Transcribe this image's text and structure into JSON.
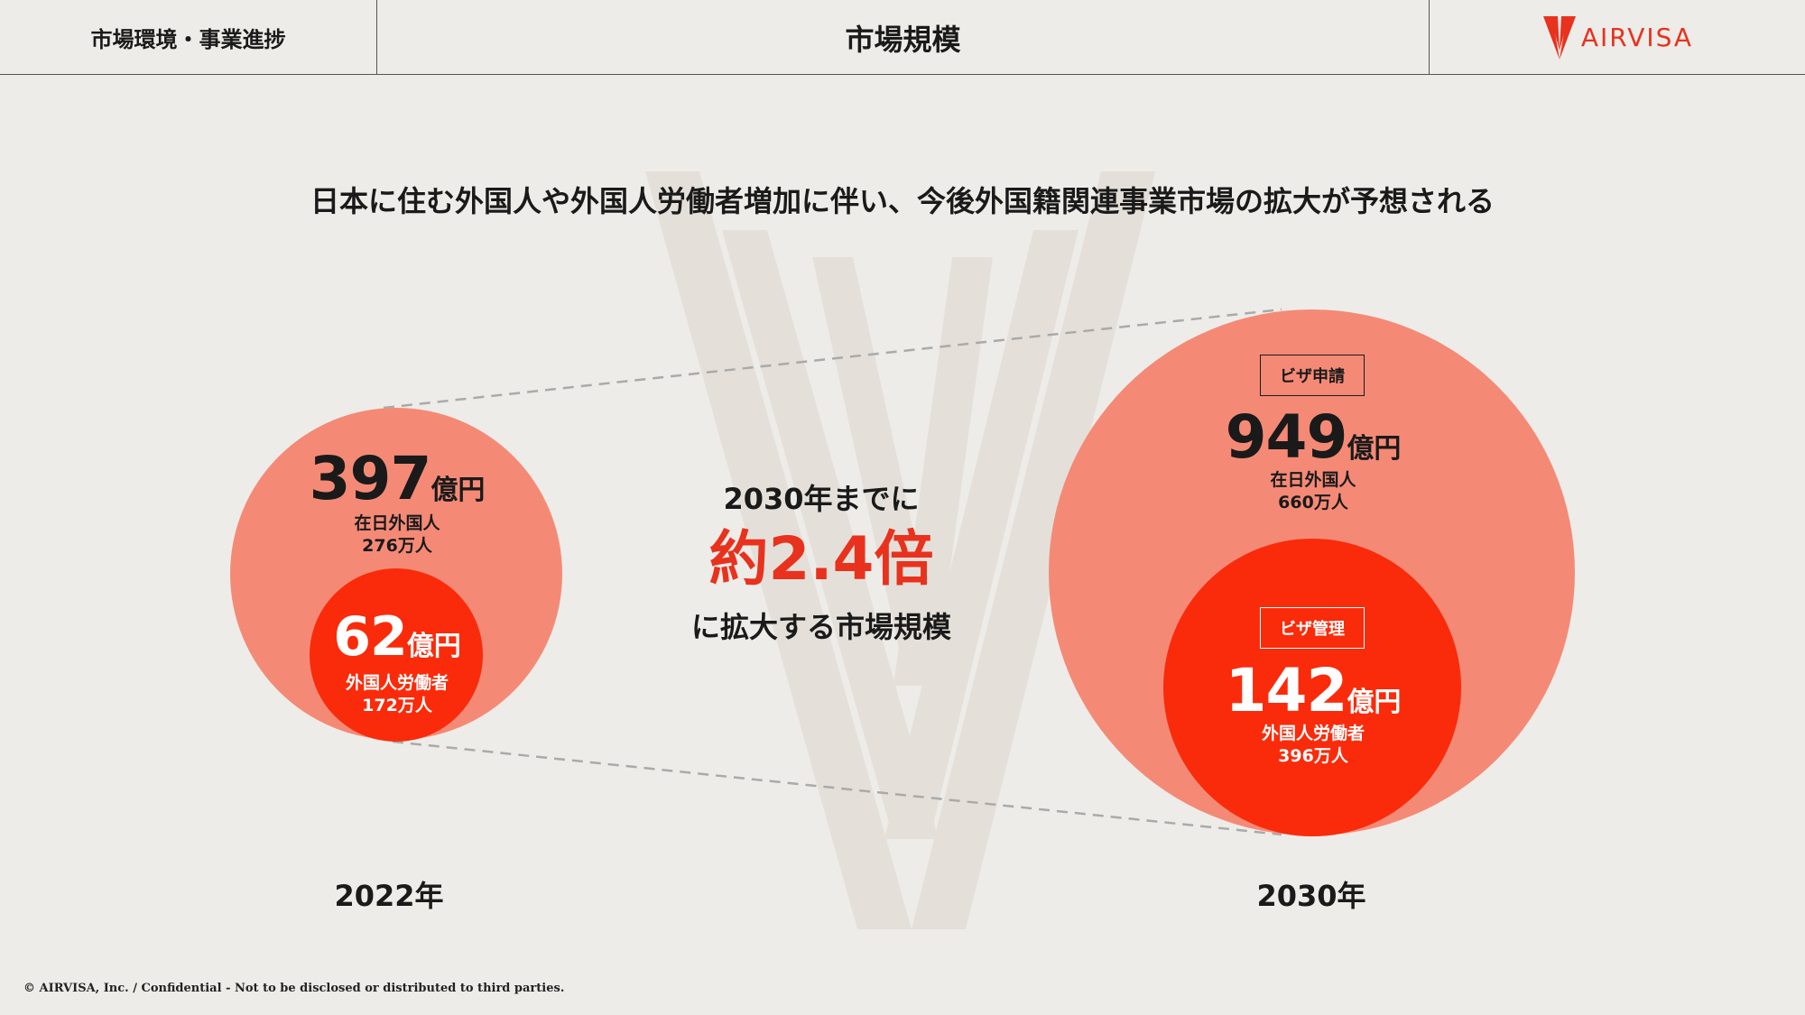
{
  "header": {
    "section": "市場環境・事業進捗",
    "title": "市場規模",
    "logo_text": "AIRVISA"
  },
  "headline": "日本に住む外国人や外国人労働者増加に伴い、今後外国籍関連事業市場の拡大が予想される",
  "year_2022": {
    "label": "2022年",
    "total_value": "397",
    "total_unit": "億円",
    "total_line1": "在日外国人",
    "total_line2": "276万人",
    "inner_value": "62",
    "inner_unit": "億円",
    "inner_line1": "外国人労働者",
    "inner_line2": "172万人"
  },
  "year_2030": {
    "label": "2030年",
    "outer_badge": "ビザ申請",
    "total_value": "949",
    "total_unit": "億円",
    "total_line1": "在日外国人",
    "total_line2": "660万人",
    "inner_badge": "ビザ管理",
    "inner_value": "142",
    "inner_unit": "億円",
    "inner_line1": "外国人労働者",
    "inner_line2": "396万人"
  },
  "growth": {
    "lead": "2030年までに",
    "multiplier": "約2.4倍",
    "tail": "に拡大する市場規模"
  },
  "footer": "© AIRVISA, Inc. / Confidential - Not to be disclosed or distributed to third parties.",
  "colors": {
    "background": "#eeece8",
    "outer_circle": "#f48a76",
    "inner_circle": "#fa2b0b",
    "accent": "#e8321e"
  }
}
